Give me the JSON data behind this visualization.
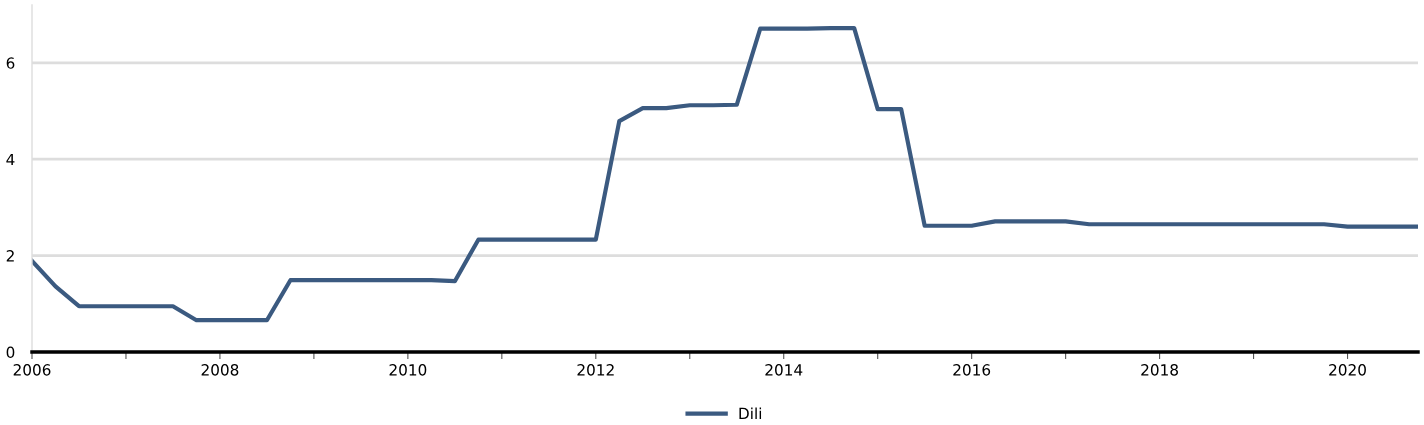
{
  "chart_data": {
    "type": "line",
    "x": [
      2006.0,
      2006.25,
      2006.5,
      2006.75,
      2007.0,
      2007.25,
      2007.5,
      2007.75,
      2008.0,
      2008.25,
      2008.5,
      2008.75,
      2009.0,
      2009.25,
      2009.5,
      2009.75,
      2010.0,
      2010.25,
      2010.5,
      2010.75,
      2011.0,
      2011.25,
      2011.5,
      2011.75,
      2012.0,
      2012.25,
      2012.5,
      2012.75,
      2013.0,
      2013.25,
      2013.5,
      2013.75,
      2014.0,
      2014.25,
      2014.5,
      2014.75,
      2015.0,
      2015.25,
      2015.5,
      2015.75,
      2016.0,
      2016.25,
      2016.5,
      2016.75,
      2017.0,
      2017.25,
      2017.5,
      2017.75,
      2018.0,
      2018.25,
      2018.5,
      2018.75,
      2019.0,
      2019.25,
      2019.5,
      2019.75,
      2020.0,
      2020.25,
      2020.5,
      2020.75
    ],
    "series": [
      {
        "name": "Dili",
        "color": "#3b5a80",
        "values": [
          1.89,
          1.36,
          0.95,
          0.95,
          0.95,
          0.95,
          0.95,
          0.66,
          0.66,
          0.66,
          0.66,
          1.49,
          1.49,
          1.49,
          1.49,
          1.49,
          1.49,
          1.49,
          1.47,
          2.33,
          2.33,
          2.33,
          2.33,
          2.33,
          2.33,
          4.79,
          5.06,
          5.06,
          5.12,
          5.12,
          5.13,
          6.71,
          6.71,
          6.71,
          6.72,
          6.72,
          5.04,
          5.04,
          2.62,
          2.62,
          2.62,
          2.71,
          2.71,
          2.71,
          2.71,
          2.65,
          2.65,
          2.65,
          2.65,
          2.65,
          2.65,
          2.65,
          2.65,
          2.65,
          2.65,
          2.65,
          2.6,
          2.6,
          2.6,
          2.6
        ]
      }
    ],
    "xlim": [
      2006,
      2020.75
    ],
    "xticks": [
      2006,
      {
        "value": 2007,
        "label": null
      },
      2008,
      {
        "value": 2009,
        "label": null
      },
      2010,
      {
        "value": 2011,
        "label": null
      },
      2012,
      {
        "value": 2013,
        "label": null
      },
      2014,
      {
        "value": 2015,
        "label": null
      },
      2016,
      {
        "value": 2017,
        "label": null
      },
      2018,
      {
        "value": 2019,
        "label": null
      },
      2020
    ],
    "ylim": [
      0,
      7.2
    ],
    "yticks": [
      0,
      2,
      4,
      6
    ],
    "grid": "y",
    "legend": "bottom",
    "marker": "none",
    "line_style": "solid"
  }
}
